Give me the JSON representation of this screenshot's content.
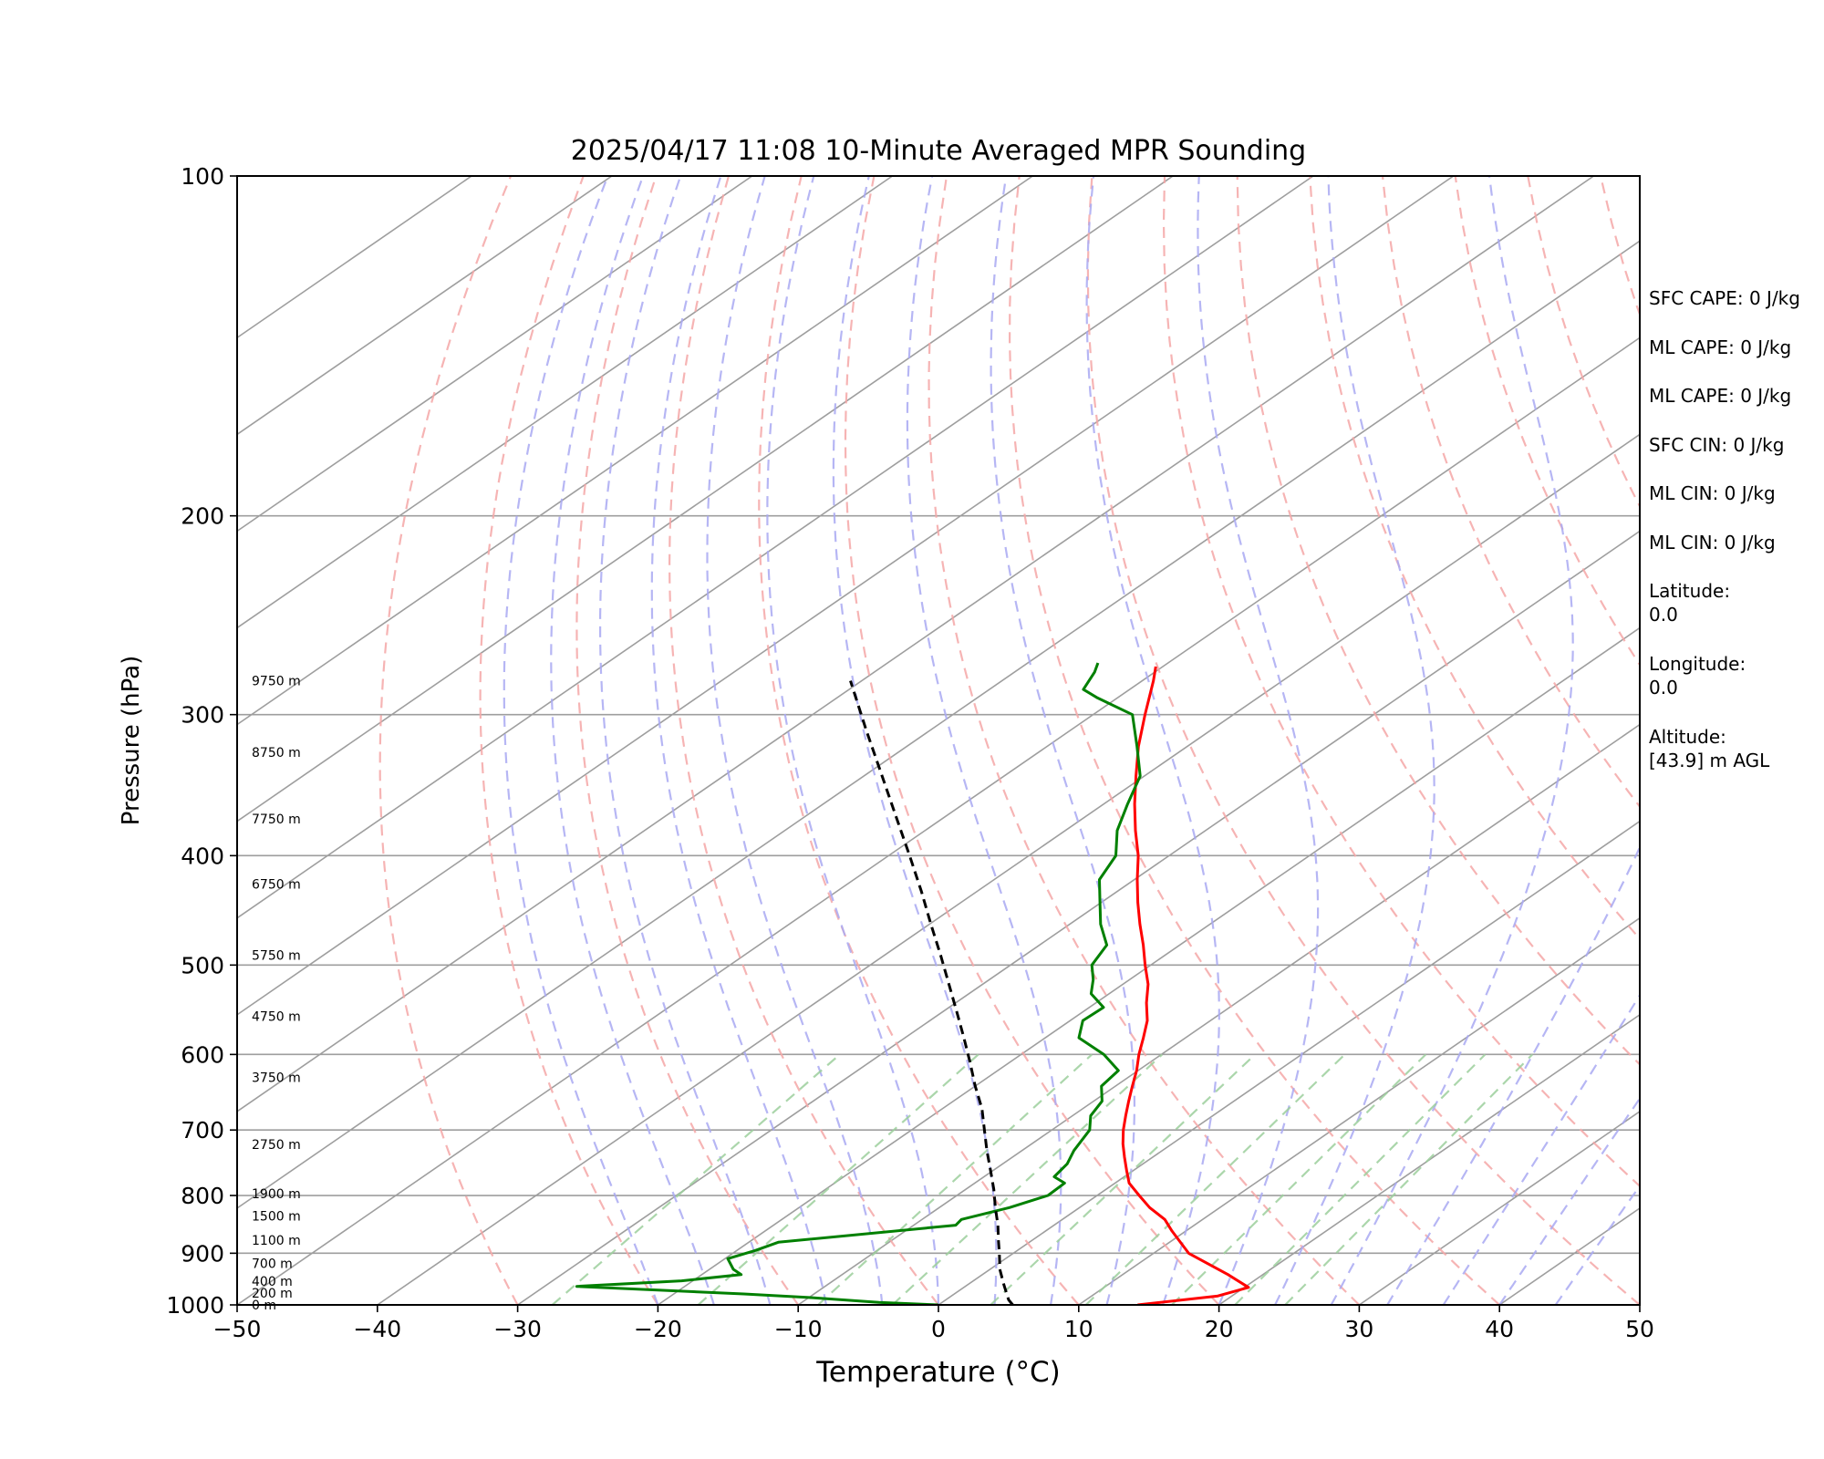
{
  "chart_data": {
    "type": "line",
    "title": "2025/04/17 11:08 10-Minute Averaged MPR Sounding",
    "xlabel": "Temperature (°C)",
    "ylabel": "Pressure (hPa)",
    "xlim": [
      -50,
      50
    ],
    "ylim": [
      1000,
      100
    ],
    "y_scale": "log",
    "skew": "skew-T log-p",
    "grid": true,
    "x_ticks": [
      "−50",
      "−40",
      "−30",
      "−20",
      "−10",
      "0",
      "10",
      "20",
      "30",
      "40",
      "50"
    ],
    "y_ticks": [
      "100",
      "200",
      "300",
      "400",
      "500",
      "600",
      "700",
      "800",
      "900",
      "1000"
    ],
    "colors": {
      "temperature": "#ff0000",
      "dewpoint": "#008000",
      "parcel": "#000000",
      "dry_adiabats": "#f4a7a7",
      "moist_adiabats": "#a9a9f2",
      "mixing_ratio": "#9ccf9c",
      "isotherms": "#9e9e9e"
    },
    "height_labels": [
      {
        "p": 1000,
        "text": "0 m"
      },
      {
        "p": 976,
        "text": "200 m"
      },
      {
        "p": 953,
        "text": "400 m"
      },
      {
        "p": 919,
        "text": "700 m"
      },
      {
        "p": 876,
        "text": "1100 m"
      },
      {
        "p": 834,
        "text": "1500 m"
      },
      {
        "p": 797,
        "text": "1900 m"
      },
      {
        "p": 721,
        "text": "2750 m"
      },
      {
        "p": 629,
        "text": "3750 m"
      },
      {
        "p": 555,
        "text": "4750 m"
      },
      {
        "p": 490,
        "text": "5750 m"
      },
      {
        "p": 424,
        "text": "6750 m"
      },
      {
        "p": 371,
        "text": "7750 m"
      },
      {
        "p": 324,
        "text": "8750 m"
      },
      {
        "p": 280,
        "text": "9750 m"
      }
    ],
    "series": [
      {
        "key": "temperature",
        "points": [
          [
            14.2,
            1000
          ],
          [
            19.0,
            982
          ],
          [
            20.3,
            965
          ],
          [
            17.5,
            940
          ],
          [
            12.5,
            900
          ],
          [
            9.0,
            860
          ],
          [
            7.3,
            840
          ],
          [
            5.0,
            820
          ],
          [
            3.0,
            800
          ],
          [
            1.0,
            780
          ],
          [
            -0.5,
            760
          ],
          [
            -2.0,
            740
          ],
          [
            -3.5,
            720
          ],
          [
            -4.9,
            700
          ],
          [
            -6.2,
            680
          ],
          [
            -7.5,
            660
          ],
          [
            -8.8,
            640
          ],
          [
            -10.1,
            620
          ],
          [
            -11.6,
            600
          ],
          [
            -13.0,
            580
          ],
          [
            -14.5,
            560
          ],
          [
            -16.4,
            540
          ],
          [
            -18.2,
            520
          ],
          [
            -20.4,
            500
          ],
          [
            -22.6,
            480
          ],
          [
            -25.0,
            460
          ],
          [
            -27.4,
            440
          ],
          [
            -29.8,
            420
          ],
          [
            -32.2,
            400
          ],
          [
            -35.0,
            380
          ],
          [
            -37.8,
            360
          ],
          [
            -40.6,
            340
          ],
          [
            -43.5,
            320
          ],
          [
            -46.3,
            300
          ],
          [
            -49.2,
            280
          ],
          [
            -50.5,
            272
          ]
        ]
      },
      {
        "key": "dewpoint",
        "points": [
          [
            0,
            1000
          ],
          [
            -4.5,
            995
          ],
          [
            -10.0,
            985
          ],
          [
            -15.0,
            978
          ],
          [
            -27.7,
            963
          ],
          [
            -20.8,
            952
          ],
          [
            -17.2,
            940
          ],
          [
            -18.3,
            930
          ],
          [
            -19.8,
            910
          ],
          [
            -18.7,
            895
          ],
          [
            -17.9,
            880
          ],
          [
            -7.0,
            850
          ],
          [
            -7.2,
            840
          ],
          [
            -5.0,
            820
          ],
          [
            -3.5,
            800
          ],
          [
            -3.6,
            780
          ],
          [
            -5.0,
            770
          ],
          [
            -5.4,
            750
          ],
          [
            -6.3,
            730
          ],
          [
            -7.3,
            700
          ],
          [
            -8.7,
            680
          ],
          [
            -9.4,
            660
          ],
          [
            -11.0,
            640
          ],
          [
            -11.4,
            620
          ],
          [
            -14.1,
            600
          ],
          [
            -17.6,
            580
          ],
          [
            -19.1,
            560
          ],
          [
            -19.0,
            545
          ],
          [
            -21.3,
            530
          ],
          [
            -22.6,
            515
          ],
          [
            -24.2,
            500
          ],
          [
            -25.2,
            480
          ],
          [
            -27.8,
            460
          ],
          [
            -30.1,
            440
          ],
          [
            -32.5,
            420
          ],
          [
            -33.8,
            400
          ],
          [
            -36.3,
            380
          ],
          [
            -38.3,
            360
          ],
          [
            -40.3,
            340
          ],
          [
            -43.6,
            320
          ],
          [
            -47.2,
            300
          ],
          [
            -51.4,
            290
          ],
          [
            -53.3,
            285
          ],
          [
            -54.3,
            275
          ],
          [
            -55.0,
            270
          ]
        ]
      },
      {
        "key": "parcel",
        "points": [
          [
            5.3,
            1000
          ],
          [
            4.5,
            990
          ],
          [
            2.6,
            960
          ],
          [
            0.7,
            930
          ],
          [
            -1.0,
            900
          ],
          [
            -2.5,
            875
          ],
          [
            -4.0,
            850
          ],
          [
            -6.0,
            820
          ],
          [
            -8.0,
            790
          ],
          [
            -10.2,
            760
          ],
          [
            -12.5,
            730
          ],
          [
            -14.8,
            700
          ],
          [
            -17.2,
            670
          ],
          [
            -20.0,
            640
          ],
          [
            -22.8,
            610
          ],
          [
            -25.8,
            580
          ],
          [
            -29.0,
            550
          ],
          [
            -32.4,
            520
          ],
          [
            -36.0,
            490
          ],
          [
            -39.9,
            460
          ],
          [
            -44.0,
            430
          ],
          [
            -48.5,
            400
          ],
          [
            -53.4,
            370
          ],
          [
            -58.7,
            340
          ],
          [
            -64.5,
            310
          ],
          [
            -70.8,
            280
          ]
        ]
      }
    ]
  },
  "side_panel": {
    "lines": [
      "SFC CAPE: 0 J/kg",
      "ML CAPE: 0 J/kg",
      "ML CAPE: 0 J/kg",
      "SFC CIN: 0 J/kg",
      "ML CIN: 0 J/kg",
      "ML CIN: 0 J/kg"
    ],
    "latitude_label": "Latitude:",
    "latitude_value": "0.0",
    "longitude_label": "Longitude:",
    "longitude_value": "0.0",
    "altitude_label": "Altitude:",
    "altitude_value": "[43.9] m AGL"
  }
}
